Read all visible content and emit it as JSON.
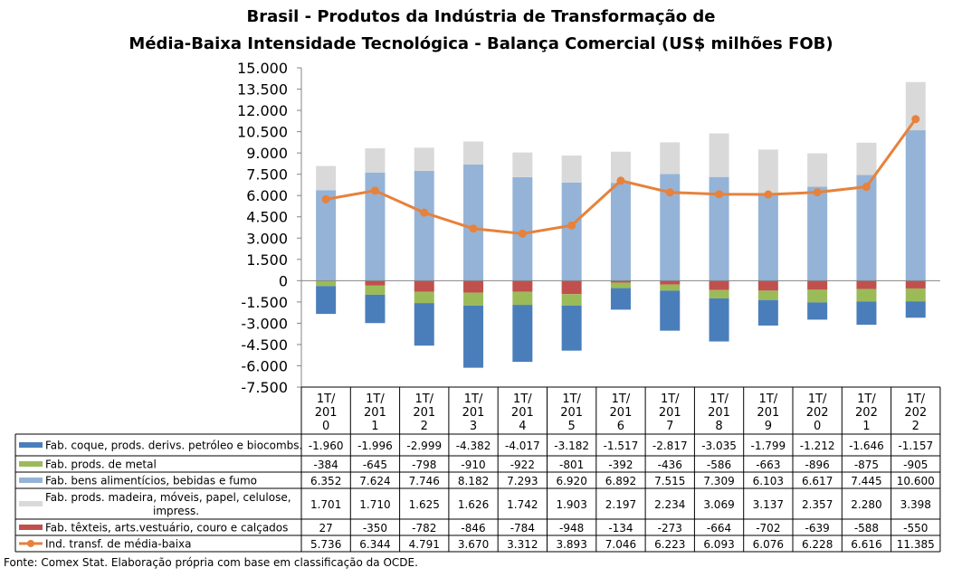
{
  "chart_data": {
    "type": "bar",
    "title_line1": "Brasil - Produtos da Indústria de Transformação de",
    "title_line2": "Média-Baixa Intensidade Tecnológica - Balança Comercial (US$ milhões FOB)",
    "categories": [
      [
        "1T/",
        "201",
        "0"
      ],
      [
        "1T/",
        "201",
        "1"
      ],
      [
        "1T/",
        "201",
        "2"
      ],
      [
        "1T/",
        "201",
        "3"
      ],
      [
        "1T/",
        "201",
        "4"
      ],
      [
        "1T/",
        "201",
        "5"
      ],
      [
        "1T/",
        "201",
        "6"
      ],
      [
        "1T/",
        "201",
        "7"
      ],
      [
        "1T/",
        "201",
        "8"
      ],
      [
        "1T/",
        "201",
        "9"
      ],
      [
        "1T/",
        "202",
        "0"
      ],
      [
        "1T/",
        "202",
        "1"
      ],
      [
        "1T/",
        "202",
        "2"
      ]
    ],
    "ylim": [
      -7500,
      15000
    ],
    "yticks": [
      15000,
      13500,
      12000,
      10500,
      9000,
      7500,
      6000,
      4500,
      3000,
      1500,
      0,
      -1500,
      -3000,
      -4500,
      -6000,
      -7500
    ],
    "ytick_labels": [
      "15.000",
      "13.500",
      "12.000",
      "10.500",
      "9.000",
      "7.500",
      "6.000",
      "4.500",
      "3.000",
      "1.500",
      "0",
      "-1.500",
      "-3.000",
      "-4.500",
      "-6.000",
      "-7.500"
    ],
    "grid": false,
    "legend_placement": "data-table",
    "stack_order": [
      4,
      2,
      3,
      1,
      0
    ],
    "series": [
      {
        "name": "Fab. coque, prods. derivs. petróleo e biocombs.",
        "type": "bar",
        "color": "#4a7ebb",
        "values": [
          -1960,
          -1996,
          -2999,
          -4382,
          -4017,
          -3182,
          -1517,
          -2817,
          -3035,
          -1799,
          -1212,
          -1646,
          -1157
        ],
        "labels": [
          "-1.960",
          "-1.996",
          "-2.999",
          "-4.382",
          "-4.017",
          "-3.182",
          "-1.517",
          "-2.817",
          "-3.035",
          "-1.799",
          "-1.212",
          "-1.646",
          "-1.157"
        ]
      },
      {
        "name": "Fab. prods. de metal",
        "type": "bar",
        "color": "#9bbb59",
        "values": [
          -384,
          -645,
          -798,
          -910,
          -922,
          -801,
          -392,
          -436,
          -586,
          -663,
          -896,
          -875,
          -905
        ],
        "labels": [
          "-384",
          "-645",
          "-798",
          "-910",
          "-922",
          "-801",
          "-392",
          "-436",
          "-586",
          "-663",
          "-896",
          "-875",
          "-905"
        ]
      },
      {
        "name": "Fab. bens alimentícios, bebidas e fumo",
        "type": "bar",
        "color": "#95b3d7",
        "values": [
          6352,
          7624,
          7746,
          8182,
          7293,
          6920,
          6892,
          7515,
          7309,
          6103,
          6617,
          7445,
          10600
        ],
        "labels": [
          "6.352",
          "7.624",
          "7.746",
          "8.182",
          "7.293",
          "6.920",
          "6.892",
          "7.515",
          "7.309",
          "6.103",
          "6.617",
          "7.445",
          "10.600"
        ]
      },
      {
        "name": "Fab. prods. madeira, móveis, papel, celulose, impress.",
        "name_lines": [
          "Fab. prods. madeira, móveis, papel, celulose,",
          "impress."
        ],
        "type": "bar",
        "color": "#d9d9d9",
        "values": [
          1701,
          1710,
          1625,
          1626,
          1742,
          1903,
          2197,
          2234,
          3069,
          3137,
          2357,
          2280,
          3398
        ],
        "labels": [
          "1.701",
          "1.710",
          "1.625",
          "1.626",
          "1.742",
          "1.903",
          "2.197",
          "2.234",
          "3.069",
          "3.137",
          "2.357",
          "2.280",
          "3.398"
        ]
      },
      {
        "name": "Fab. têxteis, arts.vestuário, couro e calçados",
        "type": "bar",
        "color": "#c0504d",
        "values": [
          27,
          -350,
          -782,
          -846,
          -784,
          -948,
          -134,
          -273,
          -664,
          -702,
          -639,
          -588,
          -550
        ],
        "labels": [
          "27",
          "-350",
          "-782",
          "-846",
          "-784",
          "-948",
          "-134",
          "-273",
          "-664",
          "-702",
          "-639",
          "-588",
          "-550"
        ]
      },
      {
        "name": "Ind. transf. de média-baixa",
        "type": "line",
        "color": "#e6823c",
        "values": [
          5736,
          6344,
          4791,
          3670,
          3312,
          3893,
          7046,
          6223,
          6093,
          6076,
          6228,
          6616,
          11385
        ],
        "labels": [
          "5.736",
          "6.344",
          "4.791",
          "3.670",
          "3.312",
          "3.893",
          "7.046",
          "6.223",
          "6.093",
          "6.076",
          "6.228",
          "6.616",
          "11.385"
        ]
      }
    ]
  },
  "footnote": "Fonte: Comex Stat. Elaboração própria com base em classificação da OCDE."
}
